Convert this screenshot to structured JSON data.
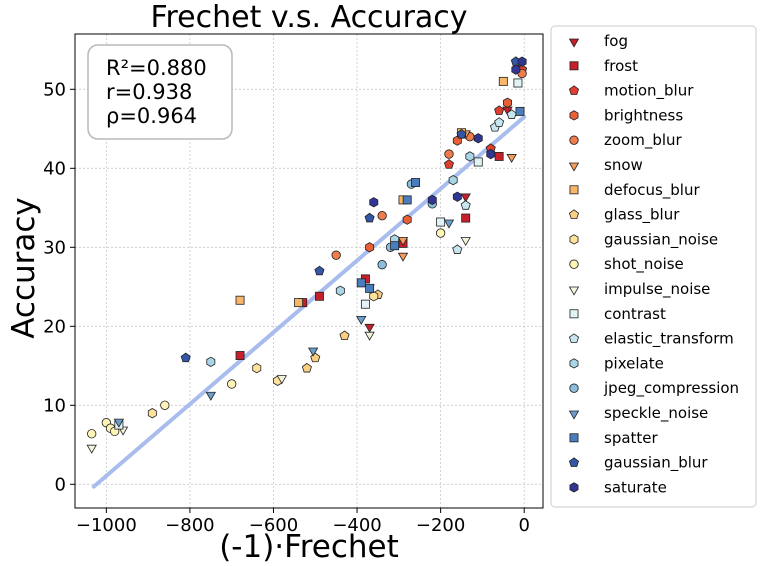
{
  "chart_data": {
    "type": "scatter",
    "title": "Frechet  v.s.  Accuracy",
    "xlabel": "(-1)·Frechet",
    "ylabel": "Accuracy",
    "xlim": [
      -1075,
      45
    ],
    "ylim": [
      -3,
      57
    ],
    "xticks": [
      -1000,
      -800,
      -600,
      -400,
      -200,
      0
    ],
    "xtick_labels": [
      "−1000",
      "−800",
      "−600",
      "−400",
      "−200",
      "0"
    ],
    "yticks": [
      0,
      10,
      20,
      30,
      40,
      50
    ],
    "ytick_labels": [
      "0",
      "10",
      "20",
      "30",
      "40",
      "50"
    ],
    "grid": true,
    "legend_position": "outside-right",
    "stats": [
      "R²=0.880",
      "r=0.938",
      "ρ=0.964"
    ],
    "fit_line": {
      "x": [
        -1030,
        0
      ],
      "y": [
        -0.3,
        46.5
      ],
      "color": "#a3b9ec"
    },
    "series": [
      {
        "name": "fog",
        "marker": "triangle-down",
        "color": "#c5202b",
        "x": [
          -370,
          -140,
          -40,
          -10
        ],
        "y": [
          20,
          36.5,
          47.5,
          53
        ]
      },
      {
        "name": "frost",
        "marker": "square",
        "color": "#c5202b",
        "x": [
          -680,
          -530,
          -490,
          -380,
          -290,
          -140,
          -60
        ],
        "y": [
          16.3,
          23,
          23.8,
          26,
          30.5,
          33.7,
          41.5
        ]
      },
      {
        "name": "motion_blur",
        "marker": "pentagon",
        "color": "#de3f2f",
        "x": [
          -180,
          -80,
          -60,
          -5
        ],
        "y": [
          40.5,
          42.5,
          47.3,
          52.5
        ]
      },
      {
        "name": "brightness",
        "marker": "hexagon",
        "color": "#e85f38",
        "x": [
          -370,
          -280,
          -160,
          -40
        ],
        "y": [
          30,
          33.5,
          43.5,
          48.3
        ]
      },
      {
        "name": "zoom_blur",
        "marker": "circle",
        "color": "#ef7c4a",
        "x": [
          -450,
          -340,
          -180,
          -130,
          -5
        ],
        "y": [
          29,
          34,
          41.8,
          44,
          52
        ]
      },
      {
        "name": "snow",
        "marker": "triangle-down",
        "color": "#f49c5b",
        "x": [
          -370,
          -290,
          -290,
          -140,
          -30
        ],
        "y": [
          25,
          29,
          31,
          44.5,
          41.5
        ]
      },
      {
        "name": "defocus_blur",
        "marker": "square",
        "color": "#f9b66a",
        "x": [
          -680,
          -540,
          -290,
          -150,
          -50
        ],
        "y": [
          23.3,
          23,
          36,
          44.5,
          51
        ]
      },
      {
        "name": "glass_blur",
        "marker": "pentagon",
        "color": "#fbcf82",
        "x": [
          -520,
          -500,
          -430,
          -350
        ],
        "y": [
          14.7,
          16,
          18.8,
          24
        ]
      },
      {
        "name": "gaussian_noise",
        "marker": "hexagon",
        "color": "#fde39a",
        "x": [
          -890,
          -640,
          -590,
          -360
        ],
        "y": [
          9,
          14.7,
          13.1,
          23.8
        ]
      },
      {
        "name": "shot_noise",
        "marker": "circle",
        "color": "#fef4b5",
        "x": [
          -1035,
          -1000,
          -990,
          -980,
          -860,
          -700,
          -200
        ],
        "y": [
          6.4,
          7.8,
          7.1,
          6.7,
          10,
          12.7,
          31.8
        ]
      },
      {
        "name": "impulse_noise",
        "marker": "triangle-down",
        "color": "#f4f6dc",
        "x": [
          -1035,
          -960,
          -580,
          -370,
          -140
        ],
        "y": [
          4.7,
          7,
          13.5,
          19,
          31
        ]
      },
      {
        "name": "contrast",
        "marker": "square",
        "color": "#e2f3f6",
        "x": [
          -970,
          -380,
          -200,
          -110,
          -15
        ],
        "y": [
          7.5,
          22.8,
          33.2,
          40.8,
          50.8
        ]
      },
      {
        "name": "elastic_transform",
        "marker": "pentagon",
        "color": "#c8e6ef",
        "x": [
          -160,
          -140,
          -70,
          -60,
          -30
        ],
        "y": [
          29.7,
          35.3,
          45.2,
          45.8,
          46.8
        ]
      },
      {
        "name": "pixelate",
        "marker": "hexagon",
        "color": "#a9d5e6",
        "x": [
          -750,
          -440,
          -310,
          -170,
          -130
        ],
        "y": [
          15.5,
          24.5,
          31,
          38.5,
          41.5
        ]
      },
      {
        "name": "jpeg_compression",
        "marker": "circle",
        "color": "#89bedc",
        "x": [
          -340,
          -320,
          -270,
          -220
        ],
        "y": [
          27.8,
          30,
          38,
          35.5
        ]
      },
      {
        "name": "speckle_noise",
        "marker": "triangle-down",
        "color": "#6a9fcc",
        "x": [
          -750,
          -970,
          -505,
          -390,
          -180
        ],
        "y": [
          11.4,
          8,
          17,
          21,
          33.2
        ]
      },
      {
        "name": "spatter",
        "marker": "square",
        "color": "#4a7dbd",
        "x": [
          -390,
          -370,
          -310,
          -280,
          -260,
          -10
        ],
        "y": [
          25.5,
          24.8,
          30.2,
          36,
          38.2,
          47.2
        ]
      },
      {
        "name": "gaussian_blur",
        "marker": "pentagon",
        "color": "#3356a6",
        "x": [
          -810,
          -490,
          -370,
          -150,
          -20
        ],
        "y": [
          16,
          27,
          33.7,
          44.3,
          53.5
        ]
      },
      {
        "name": "saturate",
        "marker": "hexagon",
        "color": "#313695",
        "x": [
          -360,
          -220,
          -160,
          -110,
          -80,
          -20,
          -5
        ],
        "y": [
          35.7,
          36,
          36.4,
          43.8,
          41.8,
          52.5,
          53.5
        ]
      }
    ]
  }
}
